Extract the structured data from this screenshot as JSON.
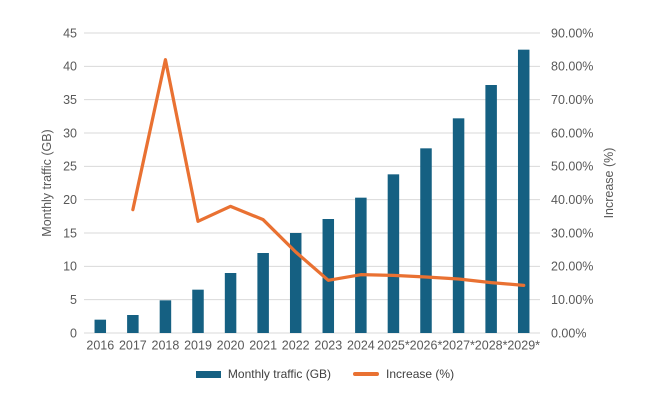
{
  "chart_data": {
    "type": "combo",
    "categories": [
      "2016",
      "2017",
      "2018",
      "2019",
      "2020",
      "2021",
      "2022",
      "2023",
      "2024",
      "2025*",
      "2026*",
      "2027*",
      "2028*",
      "2029*"
    ],
    "series": [
      {
        "name": "Monthly traffic (GB)",
        "type": "bar",
        "axis": "left",
        "color": "#156082",
        "values": [
          2,
          2.7,
          4.9,
          6.5,
          9,
          12,
          15,
          17.1,
          20.3,
          23.8,
          27.7,
          32.2,
          37.2,
          42.5
        ]
      },
      {
        "name": "Increase (%)",
        "type": "line",
        "axis": "right",
        "color": "#E97132",
        "values": [
          null,
          37,
          82,
          33.5,
          38,
          34,
          24.3,
          15.8,
          17.5,
          17.3,
          16.8,
          16.2,
          15.1,
          14.3
        ]
      }
    ],
    "left_axis": {
      "title": "Monthly traffic (GB)",
      "min": 0,
      "max": 45,
      "step": 5,
      "ticks": [
        "0",
        "5",
        "10",
        "15",
        "20",
        "25",
        "30",
        "35",
        "40",
        "45"
      ]
    },
    "right_axis": {
      "title": "Increase (%)",
      "min": 0,
      "max": 90,
      "step": 10,
      "ticks": [
        "0.00%",
        "10.00%",
        "20.00%",
        "30.00%",
        "40.00%",
        "50.00%",
        "60.00%",
        "70.00%",
        "80.00%",
        "90.00%"
      ]
    },
    "legend": {
      "position": "bottom",
      "entries": [
        "Monthly traffic (GB)",
        "Increase (%)"
      ]
    },
    "grid": true,
    "colors": {
      "bar": "#156082",
      "line": "#E97132",
      "grid": "#D9D9D9",
      "axis_line": "#D9D9D9",
      "tick_text": "#595959",
      "axis_title_text": "#595959",
      "legend_text": "#404040",
      "background": "#FFFFFF"
    }
  }
}
